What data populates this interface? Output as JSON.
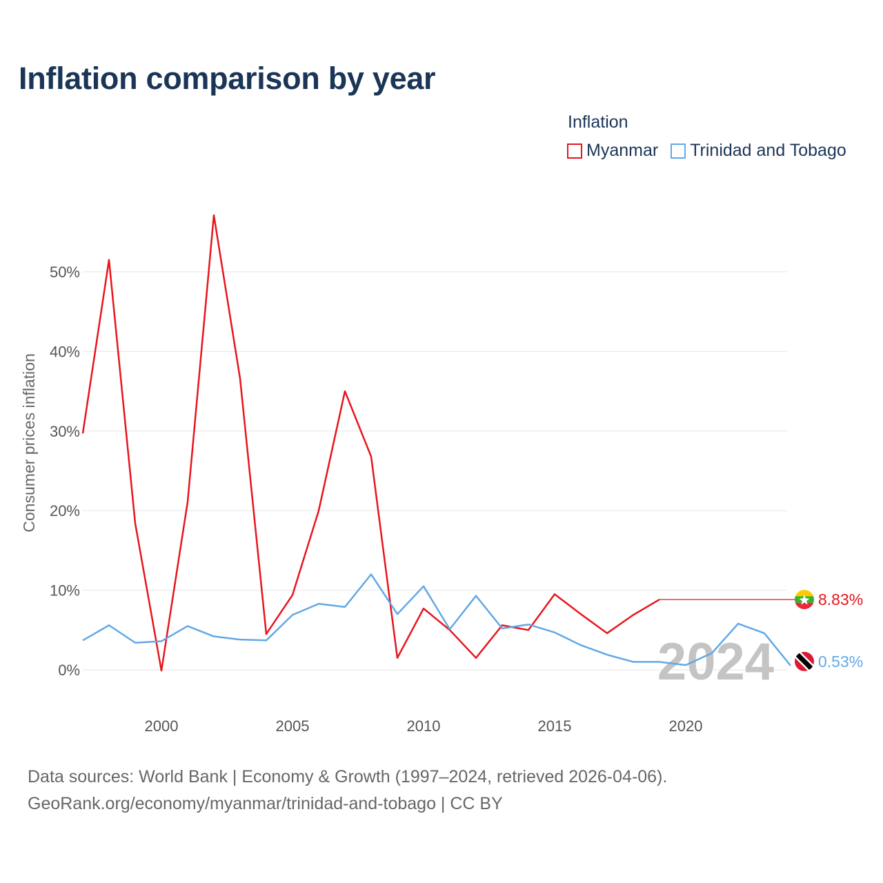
{
  "title": "Inflation comparison by year",
  "legend": {
    "title": "Inflation",
    "items": [
      {
        "label": "Myanmar",
        "color": "#e8141c"
      },
      {
        "label": "Trinidad and Tobago",
        "color": "#62a8e5"
      }
    ]
  },
  "source": {
    "line1": "Data sources: World Bank | Economy & Growth (1997–2024, retrieved 2026-04-06).",
    "line2": "GeoRank.org/economy/myanmar/trinidad-and-tobago | CC BY"
  },
  "chart_data": {
    "type": "line",
    "title": "Inflation comparison by year",
    "xlabel": "",
    "ylabel": "Consumer prices inflation",
    "xlim": [
      1997,
      2024
    ],
    "ylim": [
      -4,
      63
    ],
    "grid": true,
    "legend_position": "top-right",
    "x_ticks": [
      2000,
      2005,
      2010,
      2015,
      2020
    ],
    "y_ticks": [
      0,
      10,
      20,
      30,
      40,
      50
    ],
    "y_tick_labels": [
      "0%",
      "10%",
      "20%",
      "30%",
      "40%",
      "50%"
    ],
    "current_year_label": "2024",
    "x": [
      1997,
      1998,
      1999,
      2000,
      2001,
      2002,
      2003,
      2004,
      2005,
      2006,
      2007,
      2008,
      2009,
      2010,
      2011,
      2012,
      2013,
      2014,
      2015,
      2016,
      2017,
      2018,
      2019,
      2020,
      2021,
      2022,
      2023,
      2024
    ],
    "series": [
      {
        "name": "Myanmar",
        "color": "#e8141c",
        "values": [
          29.7,
          51.5,
          18.4,
          -0.1,
          21.1,
          57.1,
          36.6,
          4.5,
          9.4,
          20.0,
          35.0,
          26.8,
          1.5,
          7.7,
          5.0,
          1.5,
          5.6,
          5.0,
          9.5,
          7.0,
          4.6,
          6.9,
          8.83,
          8.83,
          8.83,
          8.83,
          8.83,
          8.83
        ],
        "end_label": "8.83%"
      },
      {
        "name": "Trinidad and Tobago",
        "color": "#62a8e5",
        "values": [
          3.7,
          5.6,
          3.4,
          3.6,
          5.5,
          4.2,
          3.8,
          3.7,
          6.9,
          8.3,
          7.9,
          12.0,
          7.0,
          10.5,
          5.1,
          9.3,
          5.2,
          5.7,
          4.7,
          3.1,
          1.9,
          1.0,
          1.0,
          0.6,
          2.1,
          5.8,
          4.6,
          0.53
        ],
        "end_label": "0.53%"
      }
    ]
  }
}
